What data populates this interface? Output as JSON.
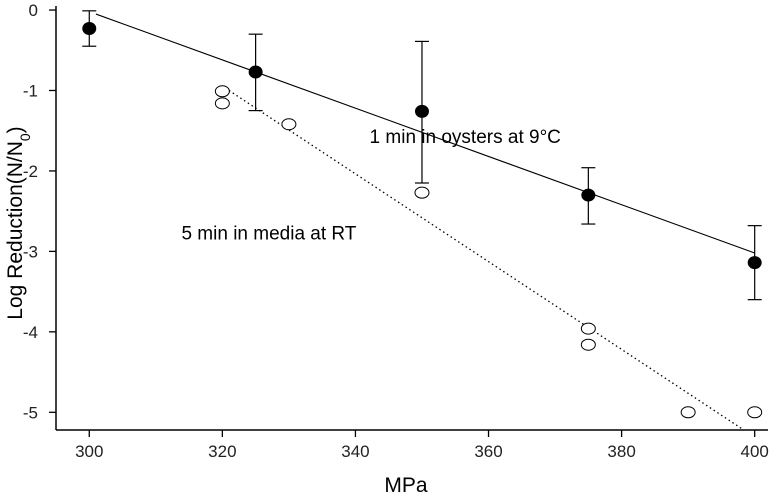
{
  "chart_data": {
    "type": "scatter",
    "xlabel": "MPa",
    "ylabel": "Log Reduction(N/N0)",
    "xlim": [
      295,
      402
    ],
    "ylim": [
      -5.22,
      0.05
    ],
    "x_ticks": [
      300,
      320,
      340,
      360,
      380,
      400
    ],
    "y_ticks": [
      0,
      -1,
      -2,
      -3,
      -4,
      -5
    ],
    "x_tick_labels": [
      "300",
      "320",
      "340",
      "360",
      "380",
      "400"
    ],
    "y_tick_labels": [
      "0",
      "-1",
      "-2",
      "-3",
      "-4",
      "-5"
    ],
    "series": [
      {
        "marker": "filled-circle",
        "points": [
          {
            "x": 300,
            "y": -0.23,
            "err_low": -0.45,
            "err_high": -0.01
          },
          {
            "x": 325,
            "y": -0.77,
            "err_low": -1.25,
            "err_high": -0.3
          },
          {
            "x": 350,
            "y": -1.26,
            "err_low": -2.15,
            "err_high": -0.39
          },
          {
            "x": 375,
            "y": -2.3,
            "err_low": -2.66,
            "err_high": -1.96
          },
          {
            "x": 400,
            "y": -3.14,
            "err_low": -3.6,
            "err_high": -2.68
          }
        ],
        "fit": {
          "style": "solid",
          "x": [
            301,
            400
          ],
          "y": [
            -0.05,
            -3.02
          ]
        }
      },
      {
        "marker": "open-circle",
        "points": [
          {
            "x": 320,
            "y": -1.01
          },
          {
            "x": 320,
            "y": -1.16
          },
          {
            "x": 330,
            "y": -1.42
          },
          {
            "x": 350,
            "y": -2.27
          },
          {
            "x": 375,
            "y": -3.96
          },
          {
            "x": 375,
            "y": -4.16
          },
          {
            "x": 390,
            "y": -5.0
          },
          {
            "x": 400,
            "y": -5.0
          }
        ],
        "fit": {
          "style": "dotted",
          "x": [
            321,
            398
          ],
          "y": [
            -1.0,
            -5.2
          ]
        }
      }
    ],
    "annotations": [
      {
        "text": "1 min in oysters at 9°C",
        "x": 356.5,
        "y": -1.65
      },
      {
        "text": "5 min in media at RT",
        "x": 327,
        "y": -2.85
      }
    ],
    "grid": false,
    "legend": "none"
  }
}
